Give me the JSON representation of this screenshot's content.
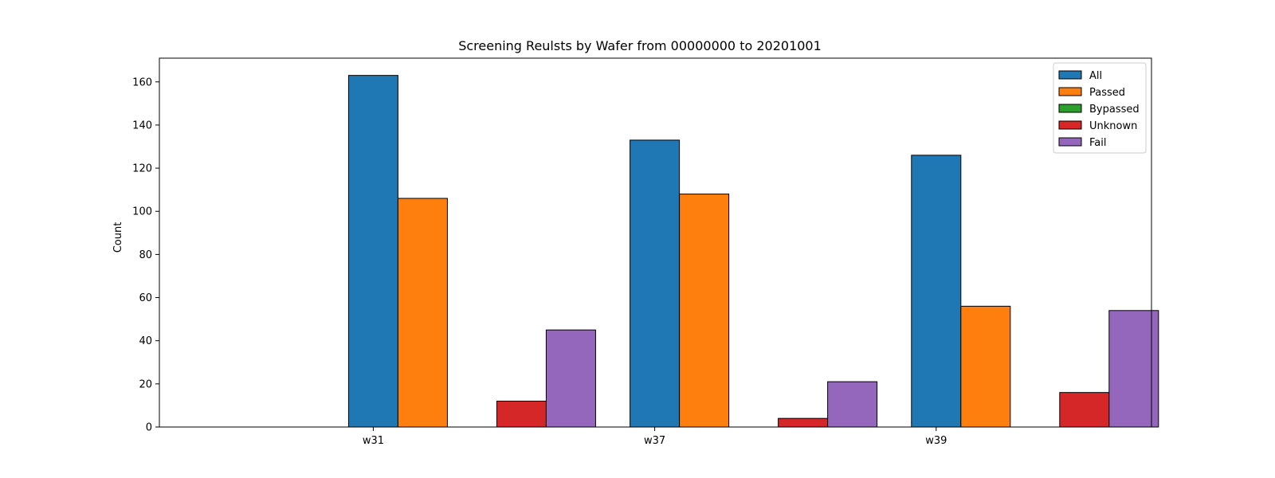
{
  "chart_data": {
    "type": "bar",
    "title": "Screening Reulsts by Wafer from 00000000 to 20201001",
    "xlabel": "",
    "ylabel": "Count",
    "categories": [
      "w31",
      "w37",
      "w39"
    ],
    "ylim": [
      0,
      171
    ],
    "yticks": [
      0,
      20,
      40,
      60,
      80,
      100,
      120,
      140,
      160
    ],
    "grid": false,
    "legend_position": "top-right",
    "series": [
      {
        "name": "All",
        "color": "#1f77b4",
        "values": [
          163,
          133,
          126
        ]
      },
      {
        "name": "Passed",
        "color": "#ff7f0e",
        "values": [
          106,
          108,
          56
        ]
      },
      {
        "name": "Bypassed",
        "color": "#2ca02c",
        "values": [
          0,
          0,
          0
        ]
      },
      {
        "name": "Unknown",
        "color": "#d62728",
        "values": [
          12,
          4,
          16
        ]
      },
      {
        "name": "Fail",
        "color": "#9467bd",
        "values": [
          45,
          21,
          54
        ]
      }
    ]
  }
}
